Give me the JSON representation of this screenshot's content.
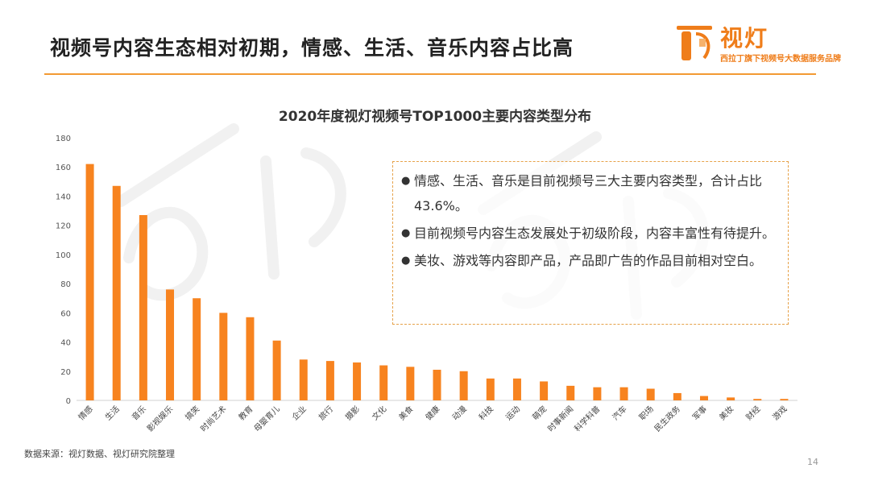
{
  "header": {
    "title": "视频号内容生态相对初期，情感、生活、音乐内容占比高",
    "logo_name": "视灯",
    "logo_tagline": "西拉丁旗下视频号大数据服务品牌",
    "accent_color": "#ef7d1a"
  },
  "chart_data": {
    "type": "bar",
    "title": "2020年度视灯视频号TOP1000主要内容类型分布",
    "categories": [
      "情感",
      "生活",
      "音乐",
      "影视娱乐",
      "搞笑",
      "时尚艺术",
      "教育",
      "母婴育儿",
      "企业",
      "旅行",
      "摄影",
      "文化",
      "美食",
      "健康",
      "动漫",
      "科技",
      "运动",
      "萌宠",
      "时事新闻",
      "科学科普",
      "汽车",
      "职场",
      "民生政务",
      "军事",
      "美妆",
      "财经",
      "游戏"
    ],
    "values": [
      162,
      147,
      127,
      76,
      70,
      60,
      57,
      41,
      28,
      27,
      26,
      24,
      23,
      21,
      20,
      15,
      15,
      13,
      10,
      9,
      9,
      8,
      5,
      3,
      2,
      1,
      1
    ],
    "yticks": [
      "0",
      "20",
      "40",
      "60",
      "80",
      "100",
      "120",
      "140",
      "160",
      "180"
    ],
    "ylim": [
      0,
      180
    ],
    "bar_color": "#f7831f",
    "grid": false,
    "legend": "none"
  },
  "notes": [
    {
      "bullet": "●",
      "text": "情感、生活、音乐是目前视频号三大主要内容类型，合计占比43.6%。"
    },
    {
      "bullet": "●",
      "text": "目前视频号内容生态发展处于初级阶段，内容丰富性有待提升。"
    },
    {
      "bullet": "●",
      "text": "美妆、游戏等内容即产品，产品即广告的作品目前相对空白。"
    }
  ],
  "footer": {
    "source": "数据来源：视灯数据、视灯研究院整理",
    "page_number": "14"
  }
}
